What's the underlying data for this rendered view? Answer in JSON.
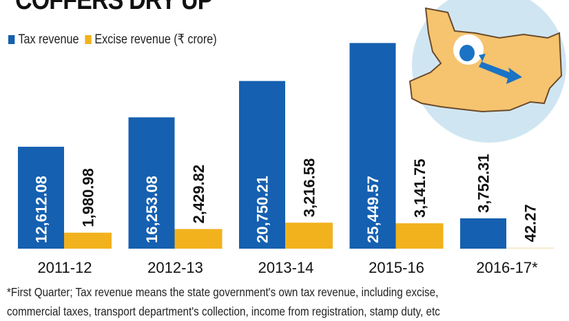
{
  "chart_data": {
    "type": "bar",
    "title": "COFFERS DRY UP",
    "categories": [
      "2011-12",
      "2012-13",
      "2013-14",
      "2015-16",
      "2016-17*"
    ],
    "series": [
      {
        "name": "Tax revenue",
        "color": "#1560b0",
        "values": [
          12612.08,
          16253.08,
          20750.21,
          25449.57,
          3752.31
        ],
        "labels": [
          "12,612.08",
          "16,253.08",
          "20,750.21",
          "25,449.57",
          "3,752.31"
        ]
      },
      {
        "name": "Excise revenue (₹ crore)",
        "color": "#f2b21e",
        "values": [
          1980.98,
          2429.82,
          3216.58,
          3141.75,
          42.27
        ],
        "labels": [
          "1,980.98",
          "2,429.82",
          "3,216.58",
          "3,141.75",
          "42.27"
        ]
      }
    ],
    "ylim": [
      0,
      26000
    ],
    "grid": false,
    "legend_position": "top-left",
    "footnote_lines": [
      "*First Quarter; Tax revenue means the state government's own tax revenue, including excise,",
      "commercial taxes, transport department's collection, income from registration, stamp duty, etc"
    ]
  },
  "illustration": {
    "icon": "bihar-map-money-bag-down-arrow-icon",
    "circle_color": "#cfe6f2",
    "map_color": "#f6c36f"
  }
}
